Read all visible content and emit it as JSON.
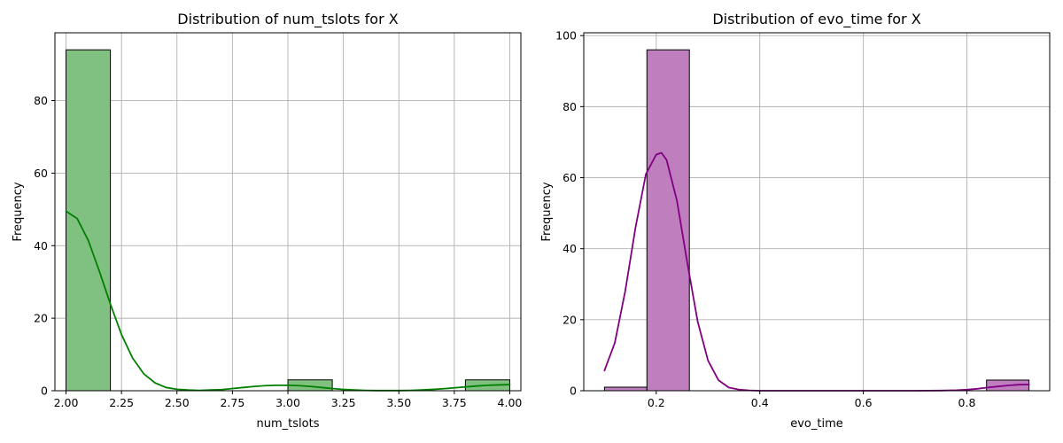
{
  "chart_data": [
    {
      "type": "histogram",
      "title": "Distribution of num_tslots for X",
      "xlabel": "num_tslots",
      "ylabel": "Frequency",
      "xlim": [
        1.95,
        4.05
      ],
      "ylim": [
        0,
        98.7
      ],
      "xticks": [
        2.0,
        2.25,
        2.5,
        2.75,
        3.0,
        3.25,
        3.5,
        3.75,
        4.0
      ],
      "xtick_labels": [
        "2.00",
        "2.25",
        "2.50",
        "2.75",
        "3.00",
        "3.25",
        "3.50",
        "3.75",
        "4.00"
      ],
      "yticks": [
        0,
        20,
        40,
        60,
        80
      ],
      "ytick_labels": [
        "0",
        "20",
        "40",
        "60",
        "80"
      ],
      "grid": true,
      "colors": {
        "bar_fill": "#80c080",
        "kde_line": "#008000"
      },
      "bins": [
        {
          "x0": 2.0,
          "x1": 2.2,
          "count": 94
        },
        {
          "x0": 3.0,
          "x1": 3.2,
          "count": 3
        },
        {
          "x0": 3.8,
          "x1": 4.0,
          "count": 3
        }
      ],
      "kde": {
        "x": [
          2.0,
          2.05,
          2.1,
          2.15,
          2.2,
          2.25,
          2.3,
          2.35,
          2.4,
          2.45,
          2.5,
          2.55,
          2.6,
          2.65,
          2.7,
          2.75,
          2.8,
          2.85,
          2.9,
          2.95,
          3.0,
          3.05,
          3.1,
          3.15,
          3.2,
          3.25,
          3.3,
          3.35,
          3.4,
          3.45,
          3.5,
          3.55,
          3.6,
          3.65,
          3.7,
          3.75,
          3.8,
          3.85,
          3.9,
          3.95,
          4.0
        ],
        "y": [
          49.5,
          47.5,
          41.5,
          33.0,
          23.9,
          15.5,
          9.0,
          4.7,
          2.2,
          0.9,
          0.4,
          0.2,
          0.1,
          0.2,
          0.3,
          0.6,
          0.9,
          1.2,
          1.4,
          1.5,
          1.5,
          1.4,
          1.2,
          0.9,
          0.6,
          0.35,
          0.2,
          0.1,
          0.05,
          0.05,
          0.05,
          0.1,
          0.2,
          0.35,
          0.55,
          0.8,
          1.05,
          1.3,
          1.5,
          1.6,
          1.7
        ]
      }
    },
    {
      "type": "histogram",
      "title": "Distribution of evo_time for X",
      "xlabel": "evo_time",
      "ylabel": "Frequency",
      "xlim": [
        0.06,
        0.96
      ],
      "ylim": [
        0,
        100.8
      ],
      "xticks": [
        0.2,
        0.4,
        0.6,
        0.8
      ],
      "xtick_labels": [
        "0.2",
        "0.4",
        "0.6",
        "0.8"
      ],
      "yticks": [
        0,
        20,
        40,
        60,
        80,
        100
      ],
      "ytick_labels": [
        "0",
        "20",
        "40",
        "60",
        "80",
        "100"
      ],
      "grid": true,
      "colors": {
        "bar_fill": "#bf7fbf",
        "kde_line": "#800080"
      },
      "bins": [
        {
          "x0": 0.1,
          "x1": 0.182,
          "count": 1
        },
        {
          "x0": 0.182,
          "x1": 0.264,
          "count": 96
        },
        {
          "x0": 0.838,
          "x1": 0.92,
          "count": 3
        }
      ],
      "kde": {
        "x": [
          0.1,
          0.12,
          0.14,
          0.16,
          0.18,
          0.2,
          0.21,
          0.22,
          0.24,
          0.26,
          0.28,
          0.3,
          0.32,
          0.34,
          0.36,
          0.38,
          0.4,
          0.45,
          0.5,
          0.55,
          0.6,
          0.65,
          0.7,
          0.75,
          0.78,
          0.8,
          0.82,
          0.84,
          0.86,
          0.88,
          0.9,
          0.92
        ],
        "y": [
          5.7,
          13.5,
          28.0,
          46.0,
          61.0,
          66.5,
          67.0,
          65.0,
          53.5,
          36.0,
          19.5,
          8.5,
          3.0,
          0.9,
          0.3,
          0.1,
          0.0,
          0.0,
          0.0,
          0.0,
          0.0,
          0.0,
          0.0,
          0.05,
          0.15,
          0.3,
          0.55,
          0.9,
          1.2,
          1.5,
          1.7,
          1.75
        ]
      }
    }
  ]
}
